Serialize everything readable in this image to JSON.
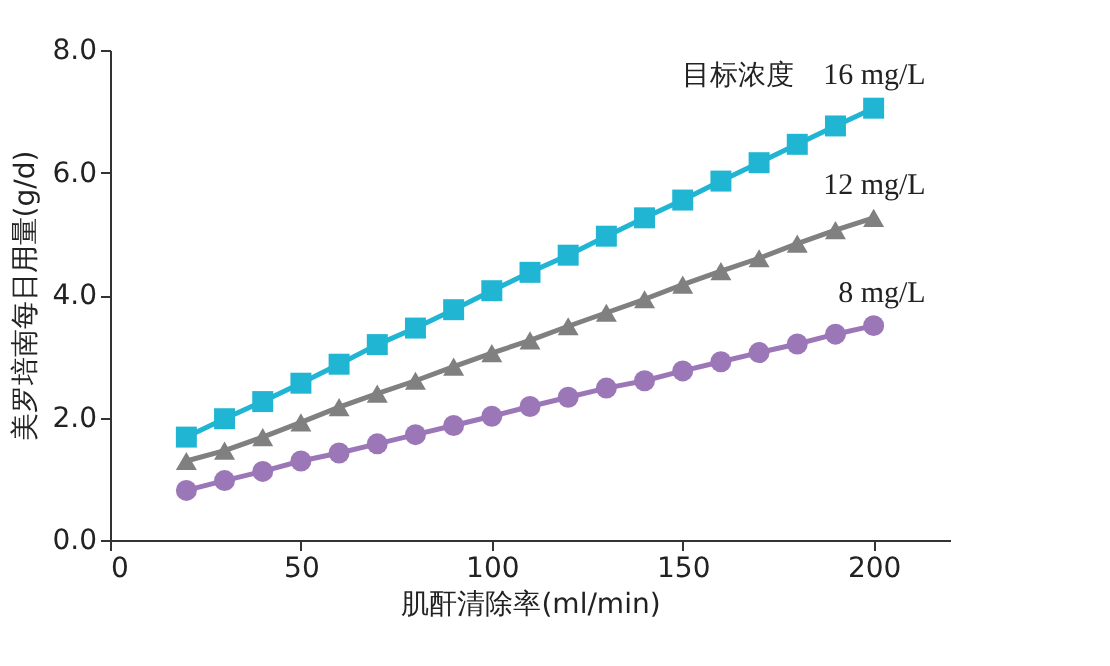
{
  "chart_data": {
    "type": "line",
    "xlabel": "肌酐清除率(ml/min)",
    "ylabel": "美罗培南每日用量(g/d)",
    "annotations": [
      "目标浓度"
    ],
    "x": [
      20,
      30,
      40,
      50,
      60,
      70,
      80,
      90,
      100,
      110,
      120,
      130,
      140,
      150,
      160,
      170,
      180,
      190,
      200
    ],
    "series": [
      {
        "name": "16 mg/L",
        "color": "#1fb5d3",
        "marker": "square",
        "values": [
          1.68,
          1.98,
          2.26,
          2.56,
          2.87,
          3.19,
          3.46,
          3.76,
          4.07,
          4.37,
          4.65,
          4.96,
          5.26,
          5.55,
          5.86,
          6.16,
          6.46,
          6.76,
          7.05
        ]
      },
      {
        "name": "12 mg/L",
        "color": "#808080",
        "marker": "triangle",
        "values": [
          1.29,
          1.46,
          1.68,
          1.92,
          2.17,
          2.39,
          2.6,
          2.83,
          3.05,
          3.26,
          3.49,
          3.71,
          3.93,
          4.17,
          4.39,
          4.6,
          4.84,
          5.06,
          5.26
        ]
      },
      {
        "name": "8 mg/L",
        "color": "#9b77b8",
        "marker": "circle",
        "values": [
          0.81,
          0.97,
          1.12,
          1.29,
          1.42,
          1.57,
          1.72,
          1.87,
          2.02,
          2.18,
          2.33,
          2.48,
          2.6,
          2.76,
          2.91,
          3.06,
          3.2,
          3.36,
          3.5
        ]
      }
    ],
    "xlim": [
      0,
      220
    ],
    "xticks": [
      0,
      50,
      100,
      150,
      200
    ],
    "ylim": [
      0,
      8.0
    ],
    "yticks": [
      {
        "value": 0,
        "label": "0.0"
      },
      {
        "value": 2,
        "label": "2.0"
      },
      {
        "value": 4,
        "label": "4.0"
      },
      {
        "value": 6,
        "label": "6.0"
      },
      {
        "value": 8,
        "label": "8.0"
      }
    ],
    "grid": false,
    "legend": false,
    "line_style": "solid"
  }
}
